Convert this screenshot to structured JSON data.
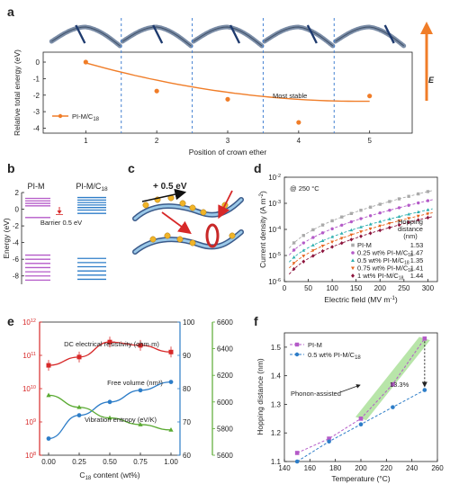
{
  "panels": {
    "a": "a",
    "b": "b",
    "c": "c",
    "d": "d",
    "e": "e",
    "f": "f"
  },
  "colors": {
    "orange": "#f07d28",
    "purple": "#b45ac8",
    "blue": "#2d7dc8",
    "red": "#d72828",
    "green": "#5aaa32",
    "dash_blue": "#4682d2",
    "teal": "#2dafaf",
    "gray": "#aaaaaa"
  },
  "chart_data": [
    {
      "id": "a",
      "type": "line",
      "xlabel": "Position of crown ether",
      "ylabel": "Relative total energy (eV)",
      "x": [
        1,
        2,
        3,
        4,
        5
      ],
      "xlim": [
        0.4,
        5.6
      ],
      "ylim": [
        -4.3,
        0.6
      ],
      "yticks": [
        0,
        -1,
        -2,
        -3,
        -4
      ],
      "series": [
        {
          "name": "PI-M/C18",
          "values": [
            0.0,
            -1.75,
            -2.25,
            -3.65,
            -2.05
          ]
        }
      ],
      "legend_label": "PI-M/C",
      "legend_sub": "18",
      "annotation": "Most stable",
      "arrow_label": "E"
    },
    {
      "id": "b",
      "type": "diagram",
      "ylabel": "Energy (eV)",
      "ylim": [
        -9,
        2
      ],
      "yticks": [
        2,
        0,
        -2,
        -4,
        -6,
        -8
      ],
      "col1_label": "PI-M",
      "col2_label": "PI-M/C",
      "col2_sub": "18",
      "barrier_text": "Barrier 0.5 eV",
      "pim_levels": [
        1.3,
        1.0,
        0.7,
        0.4,
        -1.0,
        -5.5,
        -6.0,
        -6.5,
        -7.0,
        -7.5,
        -8.0,
        -8.5
      ],
      "pimc_levels": [
        1.4,
        1.1,
        0.8,
        0.5,
        0.2,
        -0.1,
        -0.5,
        -5.9,
        -6.4,
        -6.9,
        -7.4,
        -7.9,
        -8.4
      ]
    },
    {
      "id": "c",
      "type": "schematic",
      "label": "+ 0.5 eV"
    },
    {
      "id": "d",
      "type": "scatter",
      "xlabel": "Electric field (MV m",
      "xlabel_sup": "-1",
      "xlabel_end": ")",
      "ylabel": "Current density (A m",
      "ylabel_sup": "-2",
      "ylabel_end": ")",
      "xlim": [
        0,
        320
      ],
      "ylim_log": [
        -6,
        -2
      ],
      "xticks": [
        0,
        50,
        100,
        150,
        200,
        250,
        300
      ],
      "yticks": [
        "10",
        "10",
        "10",
        "10",
        "10"
      ],
      "ytick_exps": [
        "-2",
        "-3",
        "-4",
        "-5",
        "-6"
      ],
      "temp_label": "@ 250 °C",
      "hopping_header": [
        "Hopping",
        "distance",
        "(nm)"
      ],
      "series": [
        {
          "name": "PI-M",
          "hop": "1.53",
          "a": -5.2,
          "b": 2.65,
          "marker": "square"
        },
        {
          "name": "0.25 wt% PI-M/C18",
          "hop": "1.47",
          "a": -5.45,
          "b": 2.55,
          "marker": "circle"
        },
        {
          "name": "0.5 wt% PI-M/C18",
          "hop": "1.35",
          "a": -5.7,
          "b": 2.45,
          "marker": "triangle"
        },
        {
          "name": "0.75 wt% PI-M/C18",
          "hop": "1.41",
          "a": -5.95,
          "b": 2.55,
          "marker": "tridown"
        },
        {
          "name": "1 wt% PI-M/C18",
          "hop": "1.44",
          "a": -6.2,
          "b": 2.65,
          "marker": "diamond"
        }
      ],
      "legend": [
        {
          "pre": "PI-M",
          "sub": "",
          "hop": "1.53"
        },
        {
          "pre": "0.25 wt% PI-M/C",
          "sub": "18",
          "hop": "1.47"
        },
        {
          "pre": "0.5 wt% PI-M/C",
          "sub": "18",
          "hop": "1.35"
        },
        {
          "pre": "0.75 wt% PI-M/C",
          "sub": "18",
          "hop": "1.41"
        },
        {
          "pre": "1 wt% PI-M/C",
          "sub": "18",
          "hop": "1.44"
        }
      ]
    },
    {
      "id": "e",
      "type": "line",
      "xlabel": "C",
      "xlabel_sub": "18",
      "xlabel_end": " content (wt%)",
      "x": [
        0.0,
        0.25,
        0.5,
        0.75,
        1.0
      ],
      "xticks": [
        "0.00",
        "0.25",
        "0.50",
        "0.75",
        "1.00"
      ],
      "left_yticks": [
        "10",
        "10",
        "10",
        "10",
        "10"
      ],
      "left_ytick_exps": [
        "12",
        "11",
        "10",
        "9",
        "8"
      ],
      "right1_yticks": [
        100,
        90,
        80,
        70,
        60
      ],
      "right2_yticks": [
        6600,
        6400,
        6200,
        6000,
        5800,
        5600
      ],
      "series": [
        {
          "name": "DC electrical resistivity (ohm·m)",
          "log10_values": [
            10.7,
            10.95,
            11.4,
            11.3,
            11.1
          ]
        },
        {
          "name": "Free volume (nm³)",
          "values": [
            65.0,
            72.0,
            76.0,
            79.5,
            82.0
          ]
        },
        {
          "name": "Vibration entropy (eV/K)",
          "values": [
            6050,
            5960,
            5880,
            5830,
            5790
          ]
        }
      ],
      "labels": {
        "res": "DC electrical resistivity (ohm·m)",
        "fv": "Free volume (nm³)",
        "ve": "Vibration entropy (eV/K)"
      }
    },
    {
      "id": "f",
      "type": "scatter",
      "xlabel": "Temperature (°C)",
      "ylabel": "Hopping distance (nm)",
      "x": [
        150,
        175,
        200,
        225,
        250
      ],
      "xlim": [
        140,
        260
      ],
      "ylim": [
        1.1,
        1.55
      ],
      "xticks": [
        140,
        160,
        180,
        200,
        220,
        240,
        260
      ],
      "yticks": [
        "1.1",
        "1.2",
        "1.3",
        "1.4",
        "1.5"
      ],
      "series": [
        {
          "name": "PI-M",
          "values": [
            1.13,
            1.18,
            1.25,
            1.37,
            1.53
          ]
        },
        {
          "name": "0.5 wt% PI-M/C18",
          "values": [
            1.1,
            1.17,
            1.23,
            1.29,
            1.35
          ]
        }
      ],
      "legend": [
        {
          "pre": "PI-M",
          "sub": ""
        },
        {
          "pre": "0.5 wt% PI-M/C",
          "sub": "18"
        }
      ],
      "annotation_phonon": "Phonon-assisted",
      "annotation_pct": "13.3%"
    }
  ]
}
